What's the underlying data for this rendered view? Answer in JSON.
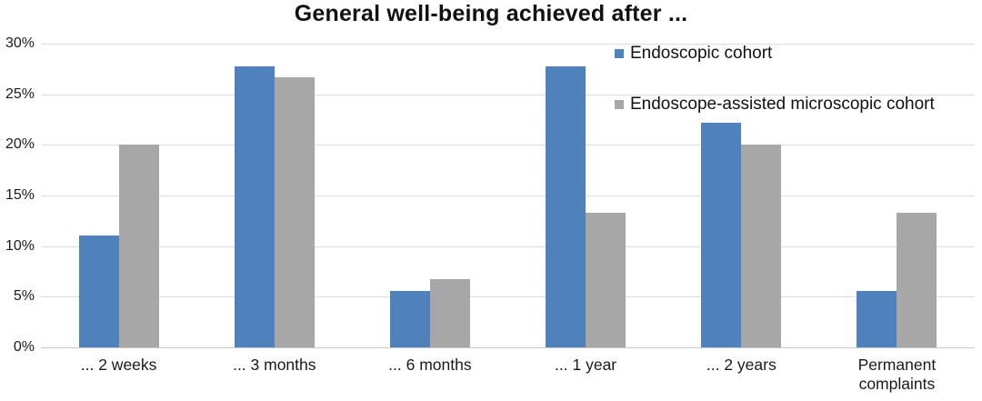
{
  "chart_data": {
    "type": "bar",
    "title": "General well-being achieved after ...",
    "categories": [
      "... 2 weeks",
      "... 3 months",
      "... 6 months",
      "... 1 year",
      "... 2 years",
      "Permanent complaints"
    ],
    "series": [
      {
        "name": "Endoscopic cohort",
        "color": "#4f81bd",
        "values": [
          11.1,
          27.8,
          5.6,
          27.8,
          22.2,
          5.6
        ]
      },
      {
        "name": "Endoscope-assisted microscopic cohort",
        "color": "#a7a7a7",
        "values": [
          20.0,
          26.7,
          6.7,
          13.3,
          20.0,
          13.3
        ]
      }
    ],
    "xlabel": "",
    "ylabel": "",
    "ylim": [
      0,
      30
    ],
    "ytick_step": 5,
    "ytick_labels": [
      "0%",
      "5%",
      "10%",
      "15%",
      "20%",
      "25%",
      "30%"
    ],
    "grid": true,
    "legend_position": "top-right",
    "colors": {
      "gridline": "#dcdcdc",
      "axis_line": "#c6c6c6",
      "text": "#1a1a1a",
      "background": "#ffffff"
    }
  }
}
